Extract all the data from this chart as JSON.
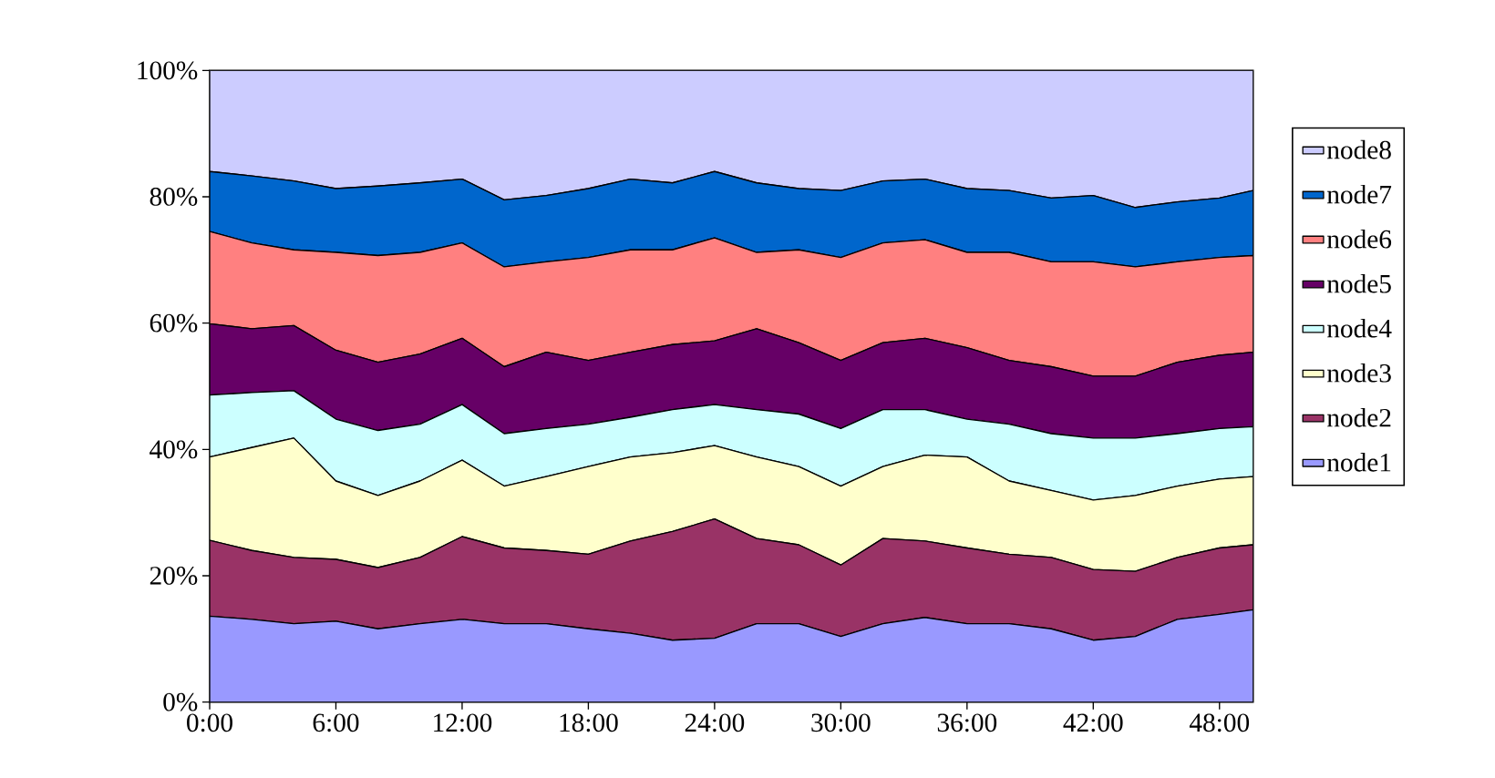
{
  "chart_data": {
    "type": "area",
    "stacked": true,
    "legend": "right",
    "x": [
      0,
      2,
      4,
      6,
      8,
      10,
      12,
      14,
      16,
      18,
      20,
      22,
      24,
      26,
      28,
      30,
      32,
      34,
      36,
      38,
      40,
      42,
      44,
      46,
      48,
      49.6
    ],
    "xlim": [
      0,
      49.6
    ],
    "xticks": [
      {
        "value": 0,
        "label": "0:00"
      },
      {
        "value": 6,
        "label": "6:00"
      },
      {
        "value": 12,
        "label": "12:00"
      },
      {
        "value": 18,
        "label": "18:00"
      },
      {
        "value": 24,
        "label": "24:00"
      },
      {
        "value": 30,
        "label": "30:00"
      },
      {
        "value": 36,
        "label": "36:00"
      },
      {
        "value": 42,
        "label": "42:00"
      },
      {
        "value": 48,
        "label": "48:00"
      }
    ],
    "ylim": [
      0,
      100
    ],
    "yticks": [
      {
        "value": 0,
        "label": "0%"
      },
      {
        "value": 20,
        "label": "20%"
      },
      {
        "value": 40,
        "label": "40%"
      },
      {
        "value": 60,
        "label": "60%"
      },
      {
        "value": 80,
        "label": "80%"
      },
      {
        "value": 100,
        "label": "100%"
      }
    ],
    "series": [
      {
        "name": "node1",
        "color": "#9999ff",
        "values": [
          13.6,
          13.1,
          12.4,
          12.8,
          11.6,
          12.4,
          13.1,
          12.4,
          12.4,
          11.6,
          10.9,
          9.8,
          10.1,
          12.4,
          12.4,
          10.4,
          12.4,
          13.4,
          12.4,
          12.4,
          11.6,
          9.8,
          10.4,
          13.1,
          13.9,
          14.6
        ]
      },
      {
        "name": "node2",
        "color": "#993366",
        "values": [
          12.0,
          10.9,
          10.5,
          9.8,
          9.7,
          10.5,
          13.1,
          12.0,
          11.6,
          11.8,
          14.6,
          17.2,
          18.9,
          13.5,
          12.5,
          11.3,
          13.5,
          12.1,
          12.0,
          11.0,
          11.3,
          11.2,
          10.3,
          9.8,
          10.5,
          10.3
        ]
      },
      {
        "name": "node3",
        "color": "#ffffcc",
        "values": [
          13.2,
          16.3,
          18.9,
          12.4,
          11.4,
          12.1,
          12.1,
          9.8,
          11.7,
          13.9,
          13.3,
          12.5,
          11.6,
          12.9,
          12.4,
          12.5,
          11.4,
          13.6,
          14.4,
          11.6,
          10.6,
          11.0,
          12.0,
          11.3,
          10.9,
          10.8
        ]
      },
      {
        "name": "node4",
        "color": "#ccffff",
        "values": [
          9.8,
          8.7,
          7.5,
          9.8,
          10.3,
          9.0,
          8.8,
          8.3,
          7.6,
          6.7,
          6.3,
          6.8,
          6.5,
          7.5,
          8.3,
          9.1,
          9.0,
          7.2,
          6.0,
          9.0,
          9.0,
          9.8,
          9.1,
          8.3,
          8.0,
          7.9
        ]
      },
      {
        "name": "node5",
        "color": "#660066",
        "values": [
          11.3,
          10.1,
          10.3,
          10.9,
          10.8,
          11.1,
          10.5,
          10.6,
          12.1,
          10.1,
          10.3,
          10.3,
          10.1,
          12.8,
          11.3,
          10.8,
          10.6,
          11.3,
          11.3,
          10.1,
          10.6,
          9.8,
          9.8,
          11.3,
          11.6,
          11.8
        ]
      },
      {
        "name": "node6",
        "color": "#ff8080",
        "values": [
          14.6,
          13.6,
          12.0,
          15.5,
          16.9,
          16.1,
          15.1,
          15.8,
          14.3,
          16.3,
          16.2,
          15.0,
          16.3,
          12.1,
          14.7,
          16.3,
          15.8,
          15.6,
          15.1,
          17.1,
          16.6,
          18.1,
          17.3,
          15.9,
          15.5,
          15.3
        ]
      },
      {
        "name": "node7",
        "color": "#0066cc",
        "values": [
          9.5,
          10.6,
          10.9,
          10.1,
          11.0,
          11.0,
          10.1,
          10.6,
          10.5,
          10.9,
          11.2,
          10.6,
          10.5,
          11.0,
          9.7,
          10.6,
          9.8,
          9.6,
          10.1,
          9.8,
          10.1,
          10.5,
          9.4,
          9.5,
          9.4,
          10.3
        ]
      },
      {
        "name": "node8",
        "color": "#ccccff",
        "values": [
          16.0,
          16.7,
          17.5,
          18.7,
          18.3,
          17.8,
          17.2,
          20.5,
          19.8,
          18.7,
          17.2,
          17.8,
          16.0,
          17.8,
          18.7,
          19.0,
          17.5,
          17.2,
          18.7,
          19.0,
          20.2,
          19.8,
          21.7,
          20.8,
          20.2,
          19.0
        ]
      }
    ]
  }
}
